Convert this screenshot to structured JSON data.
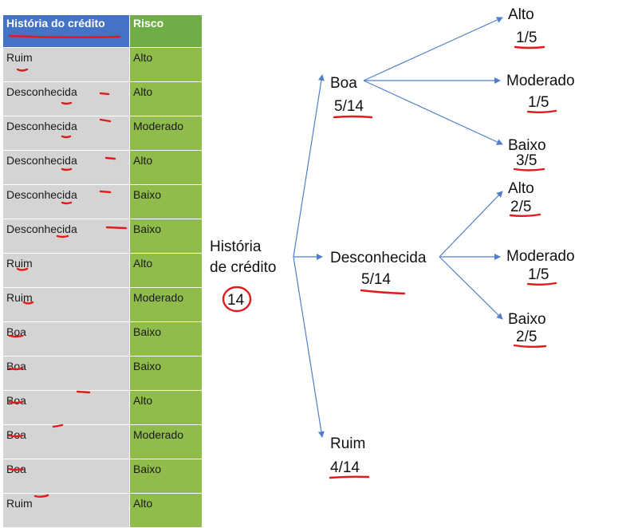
{
  "table": {
    "headers": [
      "História do crédito",
      "Risco"
    ],
    "rows": [
      [
        "Ruim",
        "Alto"
      ],
      [
        "Desconhecida",
        "Alto"
      ],
      [
        "Desconhecida",
        "Moderado"
      ],
      [
        "Desconhecida",
        "Alto"
      ],
      [
        "Desconhecida",
        "Baixo"
      ],
      [
        "Desconhecida",
        "Baixo"
      ],
      [
        "Ruim",
        "Alto"
      ],
      [
        "Ruim",
        "Moderado"
      ],
      [
        "Boa",
        "Baixo"
      ],
      [
        "Boa",
        "Baixo"
      ],
      [
        "Boa",
        "Alto"
      ],
      [
        "Boa",
        "Moderado"
      ],
      [
        "Boa",
        "Baixo"
      ],
      [
        "Ruim",
        "Alto"
      ]
    ]
  },
  "tree": {
    "root": {
      "line1": "História",
      "line2": "de crédito",
      "count": "14"
    },
    "branches": [
      {
        "name": "Boa",
        "fraction": "5/14",
        "leaves": [
          {
            "name": "Alto",
            "fraction": "1/5"
          },
          {
            "name": "Moderado",
            "fraction": "1/5"
          },
          {
            "name": "Baixo",
            "fraction": "3/5"
          }
        ]
      },
      {
        "name": "Desconhecida",
        "fraction": "5/14",
        "leaves": [
          {
            "name": "Alto",
            "fraction": "2/5"
          },
          {
            "name": "Moderado",
            "fraction": "1/5"
          },
          {
            "name": "Baixo",
            "fraction": "2/5"
          }
        ]
      },
      {
        "name": "Ruim",
        "fraction": "4/14",
        "leaves": []
      }
    ]
  },
  "colors": {
    "header_history": "#4472c4",
    "header_risk": "#70ad47",
    "cell_history": "#d4d4d4",
    "cell_risk": "#8fbc4a",
    "arrow": "#4f7fc8",
    "annotation": "#e01b1b"
  }
}
